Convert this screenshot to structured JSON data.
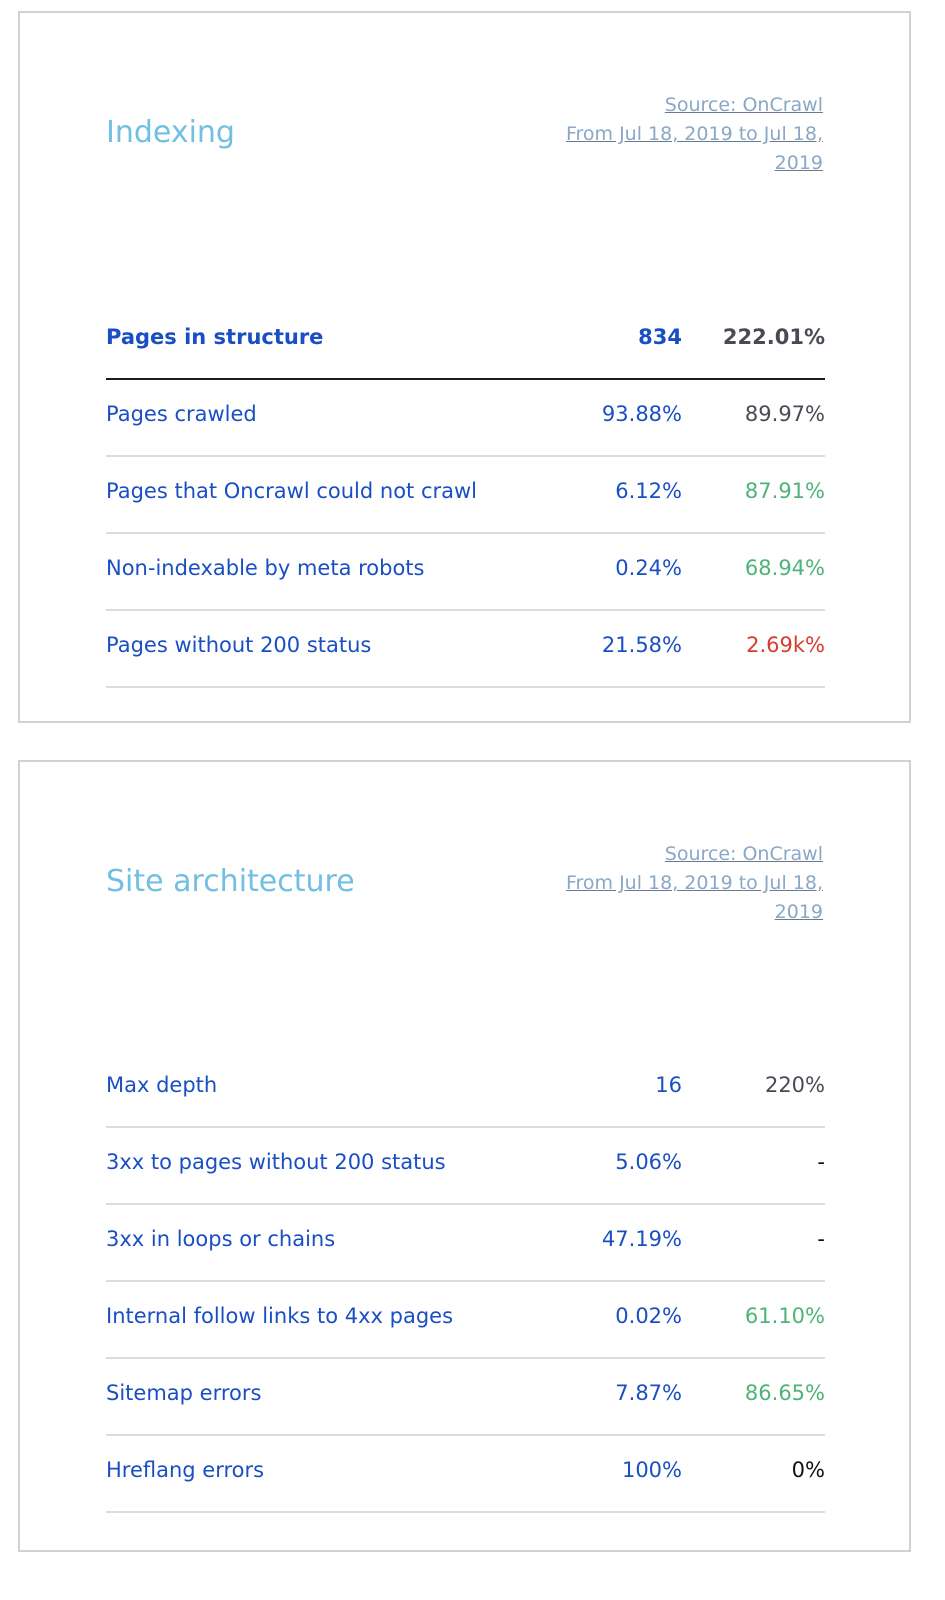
{
  "indexing": {
    "title": "Indexing",
    "source_line1": "Source: OnCrawl",
    "source_line2": "From Jul 18, 2019 to Jul 18,",
    "source_line3": "2019",
    "rows": [
      {
        "label": "Pages in structure",
        "value": "834",
        "change": "222.01%",
        "change_tone": "neutral"
      },
      {
        "label": "Pages crawled",
        "value": "93.88%",
        "change": "89.97%",
        "change_tone": "neutral"
      },
      {
        "label": "Pages that Oncrawl could not crawl",
        "value": "6.12%",
        "change": "87.91%",
        "change_tone": "good"
      },
      {
        "label": "Non-indexable by meta robots",
        "value": "0.24%",
        "change": "68.94%",
        "change_tone": "good"
      },
      {
        "label": "Pages without 200 status",
        "value": "21.58%",
        "change": "2.69k%",
        "change_tone": "bad"
      }
    ]
  },
  "site_architecture": {
    "title": "Site architecture",
    "source_line1": "Source: OnCrawl",
    "source_line2": "From Jul 18, 2019 to Jul 18,",
    "source_line3": "2019",
    "rows": [
      {
        "label": "Max depth",
        "value": "16",
        "change": "220%",
        "change_tone": "neutral"
      },
      {
        "label": "3xx to pages without 200 status",
        "value": "5.06%",
        "change": "-",
        "change_tone": "dark"
      },
      {
        "label": "3xx in loops or chains",
        "value": "47.19%",
        "change": "-",
        "change_tone": "dark"
      },
      {
        "label": "Internal follow links to 4xx pages",
        "value": "0.02%",
        "change": "61.10%",
        "change_tone": "good"
      },
      {
        "label": "Sitemap errors",
        "value": "7.87%",
        "change": "86.65%",
        "change_tone": "good"
      },
      {
        "label": "Hreflang errors",
        "value": "100%",
        "change": "0%",
        "change_tone": "dark"
      }
    ]
  },
  "colors": {
    "title": "#72bfe3",
    "label": "#1a4fc4",
    "neutral": "#4a4a55",
    "good": "#4fb378",
    "bad": "#d83a2e",
    "dark": "#111111"
  }
}
